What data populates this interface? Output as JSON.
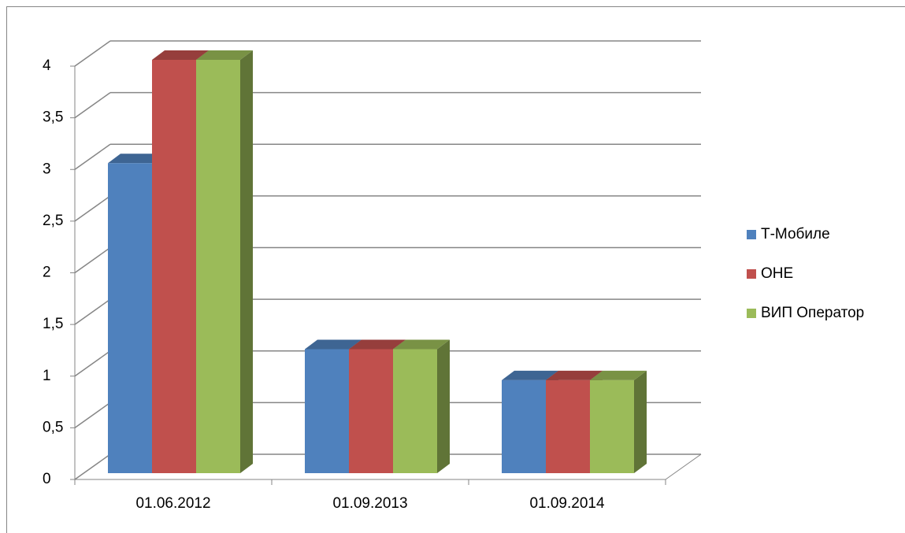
{
  "chart_data": {
    "type": "bar3d",
    "categories": [
      "01.06.2012",
      "01.09.2013",
      "01.09.2014"
    ],
    "series": [
      {
        "name": "Т-Мобиле",
        "color": "#4f81bd",
        "values": [
          3,
          1.2,
          0.9
        ]
      },
      {
        "name": "ОНЕ",
        "color": "#c0504d",
        "values": [
          4,
          1.2,
          0.9
        ]
      },
      {
        "name": "ВИП Оператор",
        "color": "#9bbb59",
        "values": [
          4,
          1.2,
          0.9
        ]
      }
    ],
    "ylim": [
      0,
      4
    ],
    "yticks": [
      0,
      {
        "value": 0.5,
        "label": "0,5"
      },
      1,
      {
        "value": 1.5,
        "label": "1,5"
      },
      2,
      {
        "value": 2.5,
        "label": "2,5"
      },
      3,
      {
        "value": 3.5,
        "label": "3,5"
      },
      4
    ],
    "grid": true,
    "legend": "right"
  }
}
